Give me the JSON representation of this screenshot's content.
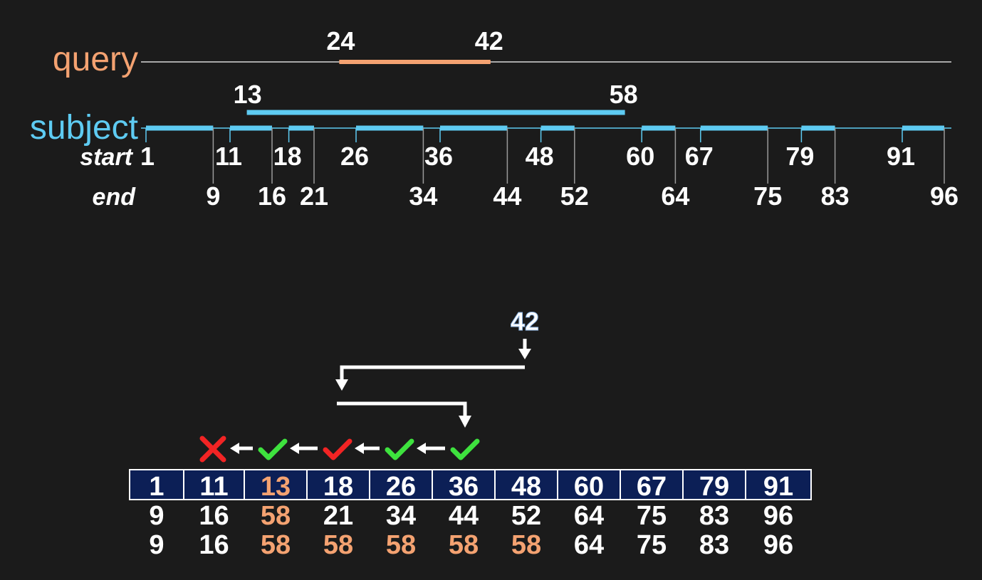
{
  "colors": {
    "background": "#1b1b1b",
    "query": "#f4a271",
    "subject": "#5ecbf2",
    "text": "#ffffff",
    "cell_fill": "#0c1f56",
    "check": "#3ee23e",
    "cross": "#f22424"
  },
  "query": {
    "label": "query",
    "start_label": "24",
    "end_label": "42",
    "start": 24,
    "end": 42
  },
  "subject": {
    "label": "subject",
    "span_start_label": "13",
    "span_end_label": "58",
    "span_start": 13,
    "span_end": 58,
    "start_row_label": "start",
    "end_row_label": "end",
    "intervals": [
      {
        "start": 1,
        "end": 9
      },
      {
        "start": 11,
        "end": 16
      },
      {
        "start": 18,
        "end": 21
      },
      {
        "start": 26,
        "end": 34
      },
      {
        "start": 36,
        "end": 44
      },
      {
        "start": 48,
        "end": 52
      },
      {
        "start": 60,
        "end": 64
      },
      {
        "start": 67,
        "end": 75
      },
      {
        "start": 79,
        "end": 83
      },
      {
        "start": 91,
        "end": 96
      }
    ]
  },
  "search": {
    "key_label": "42",
    "marks": [
      {
        "kind": "cross",
        "color": "cross"
      },
      {
        "kind": "check",
        "color": "check"
      },
      {
        "kind": "check",
        "color": "check"
      },
      {
        "kind": "check",
        "color": "cross"
      },
      {
        "kind": "check",
        "color": "check"
      },
      {
        "kind": "check",
        "color": "check"
      }
    ],
    "table": {
      "starts": [
        "1",
        "11",
        "13",
        "18",
        "26",
        "36",
        "48",
        "60",
        "67",
        "79",
        "91"
      ],
      "ends": [
        "9",
        "16",
        "58",
        "21",
        "34",
        "44",
        "52",
        "64",
        "75",
        "83",
        "96"
      ],
      "max_ends": [
        "9",
        "16",
        "58",
        "58",
        "58",
        "58",
        "58",
        "64",
        "75",
        "83",
        "96"
      ],
      "highlight_start": [
        2
      ],
      "highlight_end": [
        2
      ],
      "highlight_max_end": [
        2,
        3,
        4,
        5,
        6
      ]
    }
  }
}
